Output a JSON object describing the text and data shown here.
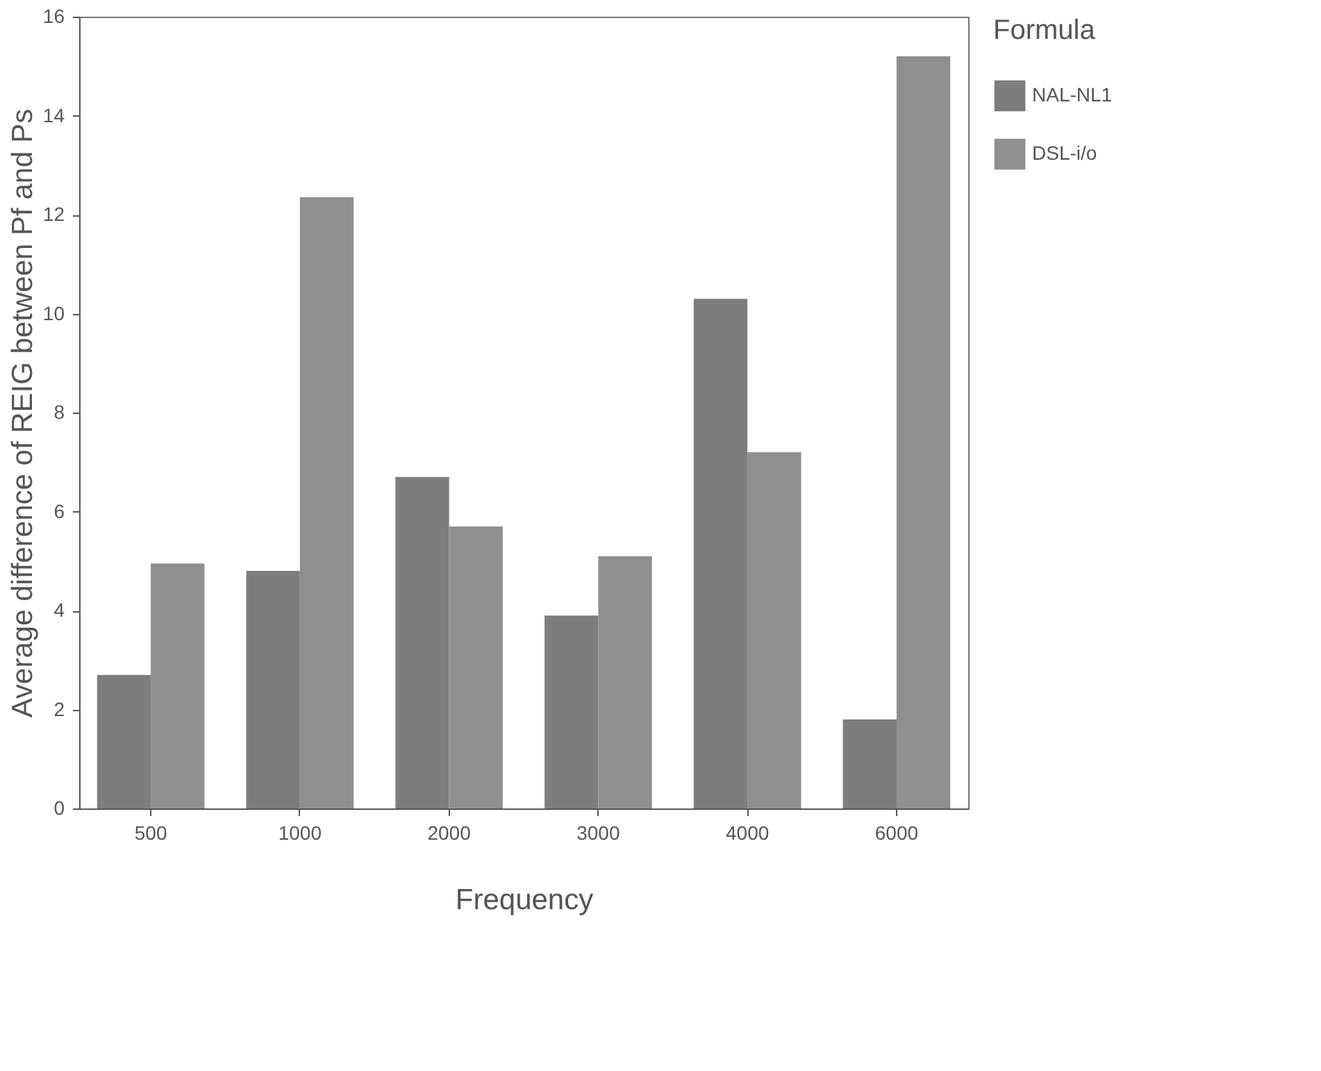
{
  "chart_data": {
    "type": "bar",
    "xlabel": "Frequency",
    "ylabel": "Average difference of REIG between Pf and Ps",
    "legend_title": "Formula",
    "categories": [
      "500",
      "1000",
      "2000",
      "3000",
      "4000",
      "6000"
    ],
    "series": [
      {
        "name": "NAL-NL1",
        "color": "#7d7d7d",
        "values": [
          2.7,
          4.8,
          6.7,
          3.9,
          10.3,
          1.8
        ]
      },
      {
        "name": "DSL-i/o",
        "color": "#8f8f8f",
        "values": [
          4.95,
          12.35,
          5.7,
          5.1,
          7.2,
          15.2
        ]
      }
    ],
    "ylim": [
      0,
      16
    ],
    "yticks": [
      0,
      2,
      4,
      6,
      8,
      10,
      12,
      14,
      16
    ],
    "grid": false,
    "legend": "right"
  }
}
